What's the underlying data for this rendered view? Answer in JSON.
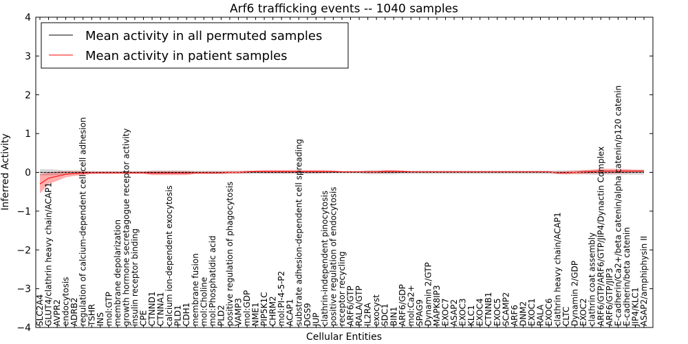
{
  "chart_data": {
    "type": "line",
    "title": "Arf6 trafficking events -- 1040 samples",
    "xlabel": "Cellular Entities",
    "ylabel": "Inferred Activity",
    "ylim": [
      -4,
      4
    ],
    "yticks": [
      "4",
      "3",
      "2",
      "1",
      "0",
      "−1",
      "−2",
      "−3",
      "−4"
    ],
    "ytick_values": [
      4,
      3,
      2,
      1,
      0,
      -1,
      -2,
      -3,
      -4
    ],
    "legend_position": "top-left",
    "colors": {
      "permuted_line": "#000000",
      "patient_line": "#ff0000",
      "permuted_band": "#c8c8c8",
      "patient_band": "#ff0000"
    },
    "categories": [
      "SLC2A4",
      "GLUT4/clathrin heavy chain/ACAP1",
      "AVPR2",
      "endocytosis",
      "ADRB2",
      "regulation of calcium-dependent cell-cell adhesion",
      "TSHR",
      "INS",
      "mol:GTP",
      "membrane depolarization",
      "growth hormone secretagogue receptor activity",
      "insulin receptor binding",
      "CPE",
      "CTNND1",
      "CTNNA1",
      "calcium ion-dependent exocytosis",
      "PLD1",
      "CDH1",
      "membrane fusion",
      "mol:Choline",
      "mol:Phosphatidic acid",
      "PLD2",
      "positive regulation of phagocytosis",
      "VAMP3",
      "mol:GDP",
      "NME1",
      "PIP5K1C",
      "CHRM2",
      "mol:PI-4-5-P2",
      "ACAP1",
      "substrate adhesion-dependent cell spreading",
      "DGS9",
      "JUP",
      "clathrin-independent pinocytosis",
      "positive regulation of endocytosis",
      "receptor recycling",
      "ARF6/GTP",
      "RALA/GTP",
      "IL2RA",
      "exocyst",
      "SDC1",
      "BIN1",
      "ARF6/GDP",
      "mol:Ca2+",
      "SPAG9",
      "Dynamin 2/GTP",
      "MAPK8IP3",
      "EXOC7",
      "ASAP2",
      "EXOC3",
      "KLC1",
      "EXOC4",
      "CTNNB1",
      "EXOC5",
      "SCAMP2",
      "ARF6",
      "DNM2",
      "EXOC1",
      "RALA",
      "EXOC6",
      "clathrin heavy chain/ACAP1",
      "CLTC",
      "Dynamin 2/GDP",
      "EXOC2",
      "clathrin coat assembly",
      "ARF6/GTP/ARF6/GTP/JIP4/Dynactin Complex",
      "ARF6/GTP/JIP3",
      "E-cadherin/Ca2+/beta catenin/alpha catenin/p120 catenin",
      "E-cadherin/beta catenin",
      "JIP4/KLC1",
      "ASAP2/amphiphysin II"
    ],
    "series": [
      {
        "name": "Mean activity in all permuted samples",
        "values": [
          0,
          0,
          0,
          0,
          0,
          0,
          0,
          0,
          0,
          0,
          0,
          0,
          0,
          0,
          0,
          0,
          0,
          0,
          0,
          0,
          0,
          0,
          0,
          0,
          0,
          0,
          0,
          0,
          0,
          0,
          0,
          0,
          0,
          0,
          0,
          0,
          0,
          0,
          0,
          0,
          0,
          0,
          0,
          0,
          0,
          0,
          0,
          0,
          0,
          0,
          0,
          0,
          0,
          0,
          0,
          0,
          0,
          0,
          0,
          0,
          0,
          0,
          0,
          0,
          0,
          0,
          0,
          0,
          0,
          0,
          0
        ],
        "band": [
          0.08,
          0.08,
          0.07,
          0.05,
          0.05,
          0.05,
          0.03,
          0.03,
          0.03,
          0.03,
          0.03,
          0.03,
          0.03,
          0.05,
          0.05,
          0.05,
          0.05,
          0.05,
          0.04,
          0.04,
          0.04,
          0.04,
          0.04,
          0.04,
          0.04,
          0.04,
          0.04,
          0.04,
          0.04,
          0.04,
          0.04,
          0.04,
          0.04,
          0.03,
          0.03,
          0.03,
          0.03,
          0.03,
          0.05,
          0.05,
          0.05,
          0.05,
          0.04,
          0.04,
          0.04,
          0.04,
          0.04,
          0.04,
          0.04,
          0.04,
          0.04,
          0.04,
          0.04,
          0.04,
          0.04,
          0.04,
          0.04,
          0.04,
          0.04,
          0.04,
          0.05,
          0.05,
          0.05,
          0.05,
          0.06,
          0.06,
          0.06,
          0.06,
          0.06,
          0.06,
          0.06
        ]
      },
      {
        "name": "Mean activity in patient samples",
        "values": [
          -0.3,
          -0.15,
          -0.1,
          -0.05,
          -0.03,
          -0.02,
          -0.01,
          -0.01,
          -0.01,
          -0.01,
          -0.01,
          -0.01,
          -0.01,
          -0.02,
          -0.02,
          -0.02,
          -0.02,
          -0.02,
          -0.01,
          -0.01,
          -0.01,
          -0.01,
          0,
          0,
          0.01,
          0.02,
          0.02,
          0.02,
          0.02,
          0.02,
          0.02,
          0.02,
          0.02,
          0.02,
          0.02,
          0.01,
          0.01,
          0.01,
          0.01,
          0.01,
          0.02,
          0.02,
          0.02,
          0.01,
          0.01,
          0.01,
          0.01,
          0.01,
          0.01,
          0.01,
          0.01,
          0.01,
          0.01,
          0.01,
          0.01,
          0.01,
          0.01,
          0.01,
          0.01,
          0.01,
          -0.01,
          -0.01,
          0,
          0.01,
          0.02,
          0.03,
          0.03,
          0.03,
          0.03,
          0.03,
          0.03
        ],
        "band": [
          0.25,
          0.15,
          0.12,
          0.08,
          0.06,
          0.05,
          0.03,
          0.03,
          0.03,
          0.03,
          0.03,
          0.03,
          0.03,
          0.05,
          0.05,
          0.05,
          0.05,
          0.05,
          0.03,
          0.03,
          0.03,
          0.03,
          0.03,
          0.03,
          0.03,
          0.03,
          0.04,
          0.04,
          0.04,
          0.04,
          0.04,
          0.04,
          0.04,
          0.04,
          0.03,
          0.02,
          0.02,
          0.02,
          0.03,
          0.03,
          0.04,
          0.04,
          0.03,
          0.02,
          0.02,
          0.02,
          0.02,
          0.02,
          0.02,
          0.02,
          0.02,
          0.02,
          0.02,
          0.02,
          0.02,
          0.02,
          0.02,
          0.02,
          0.02,
          0.02,
          0.03,
          0.04,
          0.04,
          0.05,
          0.05,
          0.06,
          0.06,
          0.06,
          0.05,
          0.04,
          0.04
        ]
      }
    ]
  }
}
